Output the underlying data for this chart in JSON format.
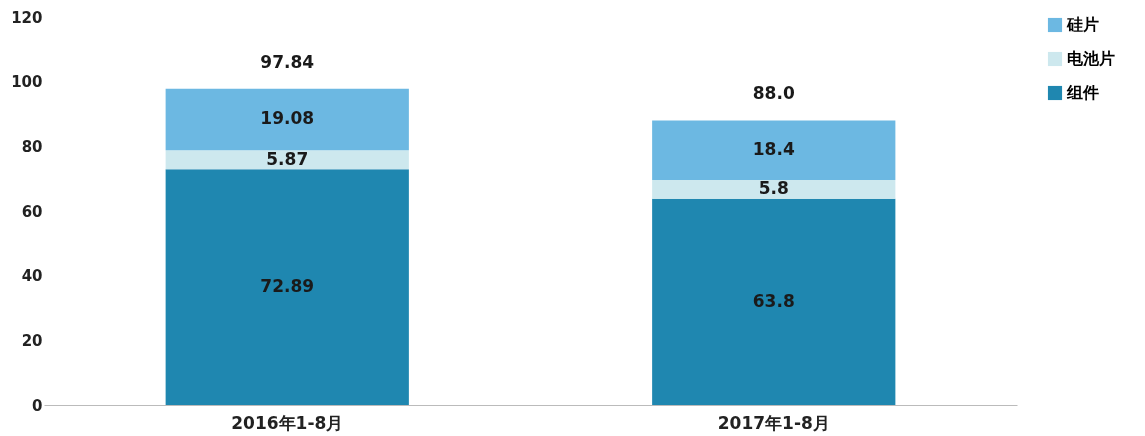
{
  "chart_data": {
    "type": "bar",
    "stacked": true,
    "categories": [
      "2016年1-8月",
      "2017年1-8月"
    ],
    "series": [
      {
        "name": "组件",
        "color": "#1f87b0",
        "values": [
          72.89,
          63.8
        ]
      },
      {
        "name": "电池片",
        "color": "#cde8ee",
        "values": [
          5.87,
          5.8
        ]
      },
      {
        "name": "硅片",
        "color": "#6cb8e2",
        "values": [
          19.08,
          18.4
        ]
      }
    ],
    "ylim": [
      0,
      120
    ],
    "yticks": [
      0,
      20,
      40,
      60,
      80,
      100,
      120
    ],
    "grid": false,
    "legend": "right",
    "data_labels": true,
    "totals": [
      "97.84",
      "88.0"
    ]
  }
}
